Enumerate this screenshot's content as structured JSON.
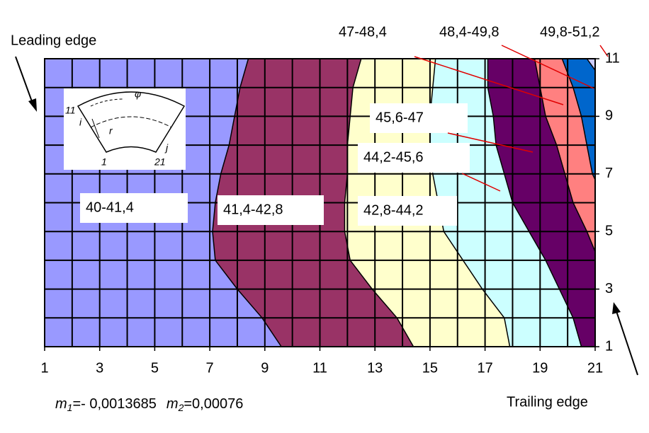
{
  "chart_data": {
    "type": "contour",
    "xlim": [
      1,
      21
    ],
    "ylim": [
      1,
      11
    ],
    "xticks": [
      1,
      3,
      5,
      7,
      9,
      11,
      13,
      15,
      17,
      19,
      21
    ],
    "yticks": [
      1,
      3,
      5,
      7,
      9,
      11
    ],
    "xgrid": [
      1,
      2,
      3,
      4,
      5,
      6,
      7,
      8,
      9,
      10,
      11,
      12,
      13,
      14,
      15,
      16,
      17,
      18,
      19,
      20,
      21
    ],
    "ygrid": [
      1,
      2,
      3,
      4,
      5,
      6,
      7,
      8,
      9,
      10,
      11
    ],
    "grid": true,
    "bands": [
      {
        "name": "40-41,4",
        "color": "#9999ff"
      },
      {
        "name": "41,4-42,8",
        "color": "#993366"
      },
      {
        "name": "42,8-44,2",
        "color": "#ffffcc"
      },
      {
        "name": "44,2-45,6",
        "color": "#ccffff"
      },
      {
        "name": "45,6-47",
        "color": "#660066"
      },
      {
        "name": "47-48,4",
        "color": "#ff8080"
      },
      {
        "name": "48,4-49,8",
        "color": "#0066cc"
      },
      {
        "name": "49,8-51,2",
        "color": "#ccccff"
      }
    ],
    "boundaries": [
      {
        "x": [
          9.6,
          8.9,
          8.0,
          7.2,
          7.1,
          7.2,
          7.4,
          7.7,
          7.9,
          8.1,
          8.4
        ],
        "y": [
          1,
          2,
          3,
          4,
          5,
          6,
          7,
          8,
          9,
          10,
          11
        ]
      },
      {
        "x": [
          14.4,
          13.8,
          12.9,
          12.1,
          11.9,
          11.9,
          12.0,
          12.0,
          12.1,
          12.2,
          12.5
        ],
        "y": [
          1,
          2,
          3,
          4,
          5,
          6,
          7,
          8,
          9,
          10,
          11
        ]
      },
      {
        "x": [
          17.9,
          17.7,
          16.9,
          16.2,
          15.5,
          15.3,
          15.1,
          15.0,
          15.0,
          15.1,
          15.2
        ],
        "y": [
          1,
          2,
          3,
          4,
          5,
          6,
          7,
          8,
          9,
          10,
          11
        ]
      },
      {
        "x": [
          20.5,
          20.2,
          19.7,
          19.2,
          18.6,
          18.0,
          17.7,
          17.4,
          17.3,
          17.1,
          17.1
        ],
        "y": [
          1,
          2,
          3,
          4,
          5,
          6,
          7,
          8,
          9,
          10,
          11
        ]
      },
      {
        "x": [
          21,
          20.7,
          20.2,
          19.9,
          19.6,
          19.2,
          19.0,
          18.8
        ],
        "y": [
          4.3,
          5,
          6,
          7,
          8,
          9,
          10,
          11
        ]
      },
      {
        "x": [
          21,
          20.9,
          20.7,
          20.5,
          20.2,
          19.8
        ],
        "y": [
          6.8,
          7,
          8,
          9,
          10,
          11
        ]
      },
      {
        "x": [
          21,
          20.7
        ],
        "y": [
          10.6,
          11
        ]
      }
    ],
    "leading_edge": "Leading edge",
    "trailing_edge": "Trailing edge",
    "formula": [
      {
        "symbol": "m",
        "sub": "1",
        "text": "=- 0,0013685"
      },
      {
        "symbol": "m",
        "sub": "2",
        "text": "=0,00076"
      }
    ],
    "inset": {
      "labels": [
        "11",
        "i",
        "φ",
        "r",
        "1",
        "21",
        "j"
      ]
    }
  }
}
